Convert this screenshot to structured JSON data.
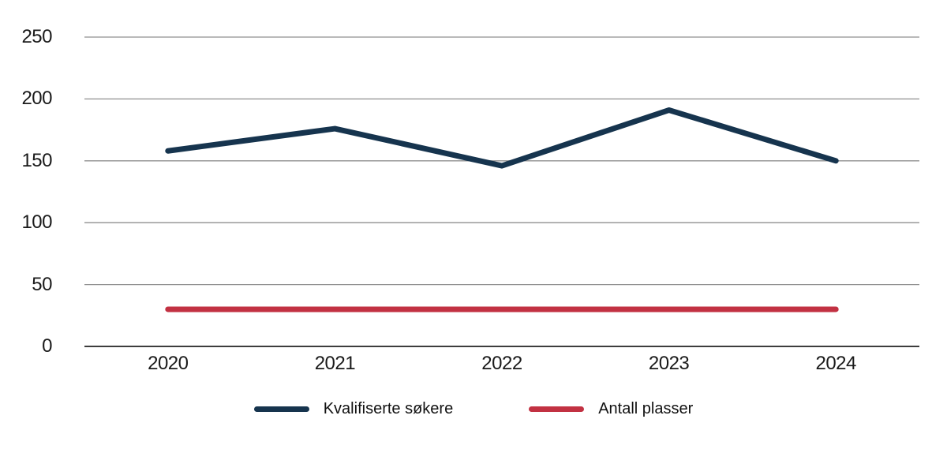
{
  "chart_data": {
    "type": "line",
    "title": "",
    "xlabel": "",
    "ylabel": "",
    "categories": [
      "2020",
      "2021",
      "2022",
      "2023",
      "2024"
    ],
    "series": [
      {
        "name": "Kvalifiserte søkere",
        "values": [
          158,
          176,
          146,
          191,
          150
        ],
        "color": "#16344e"
      },
      {
        "name": "Antall plasser",
        "values": [
          30,
          30,
          30,
          30,
          30
        ],
        "color": "#c23142"
      }
    ],
    "yticks": [
      0,
      50,
      100,
      150,
      200,
      250
    ],
    "ylim": [
      0,
      250
    ],
    "grid": true,
    "legend_position": "bottom"
  },
  "colors": {
    "background": "#ffffff",
    "gridline": "#8f8f8f",
    "zero_axis": "#3d3d3d",
    "tick_text": "#1a1a1a"
  }
}
